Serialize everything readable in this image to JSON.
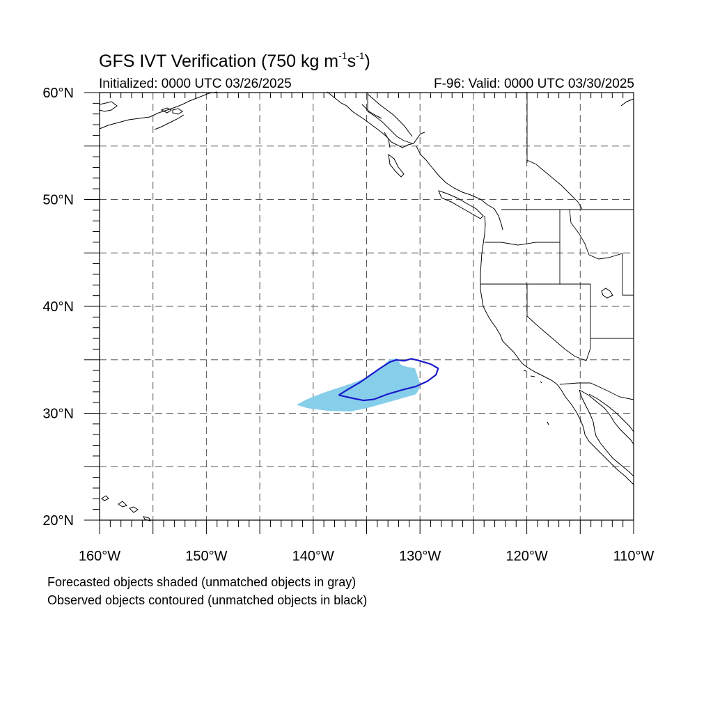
{
  "header": {
    "title_main": "GFS IVT Verification (750 kg m",
    "title_sup1": "-1",
    "title_mid": "s",
    "title_sup2": "-1",
    "title_end": ")",
    "initialized": "Initialized: 0000 UTC 03/26/2025",
    "valid": "F-96: Valid: 0000 UTC 03/30/2025"
  },
  "map": {
    "projection": "cylindrical-equidistant",
    "lon_range": [
      -160,
      -110
    ],
    "lat_range": [
      20,
      60
    ],
    "gridlines": "dashed every 5 degrees",
    "lat_ticks": [
      {
        "value": 20,
        "label": "20°N"
      },
      {
        "value": 30,
        "label": "30°N"
      },
      {
        "value": 40,
        "label": "40°N"
      },
      {
        "value": 50,
        "label": "50°N"
      },
      {
        "value": 60,
        "label": "60°N"
      }
    ],
    "lon_ticks": [
      {
        "value": -160,
        "label": "160°W"
      },
      {
        "value": -150,
        "label": "150°W"
      },
      {
        "value": -140,
        "label": "140°W"
      },
      {
        "value": -130,
        "label": "130°W"
      },
      {
        "value": -120,
        "label": "120°W"
      },
      {
        "value": -110,
        "label": "110°W"
      }
    ],
    "colors": {
      "forecast_fill": "#87ceeb",
      "observed_contour": "#1a1acc",
      "coastline": "#000000",
      "grid": "#555555"
    },
    "forecast_object": {
      "outline": [
        [
          -141.5,
          30.8
        ],
        [
          -140.5,
          31.3
        ],
        [
          -139,
          31.9
        ],
        [
          -137.5,
          32.4
        ],
        [
          -136,
          32.9
        ],
        [
          -134.8,
          33.4
        ],
        [
          -133.5,
          34.4
        ],
        [
          -132.8,
          35.0
        ],
        [
          -132.2,
          35.1
        ],
        [
          -131.8,
          34.5
        ],
        [
          -131.2,
          34.3
        ],
        [
          -130.5,
          34.2
        ],
        [
          -130.1,
          33.0
        ],
        [
          -130.1,
          32.3
        ],
        [
          -130.4,
          31.8
        ],
        [
          -131.8,
          31.4
        ],
        [
          -133.2,
          31.0
        ],
        [
          -135.0,
          30.5
        ],
        [
          -136.5,
          30.2
        ],
        [
          -138.5,
          30.25
        ],
        [
          -140.5,
          30.5
        ]
      ]
    },
    "observed_object": {
      "outline": [
        [
          -137.6,
          31.7
        ],
        [
          -136.8,
          32.2
        ],
        [
          -135.6,
          32.9
        ],
        [
          -134.6,
          33.6
        ],
        [
          -133.6,
          34.3
        ],
        [
          -132.8,
          34.8
        ],
        [
          -132.2,
          35.0
        ],
        [
          -131.5,
          34.9
        ],
        [
          -130.8,
          35.1
        ],
        [
          -130.0,
          34.9
        ],
        [
          -129.0,
          34.6
        ],
        [
          -128.3,
          34.2
        ],
        [
          -128.5,
          33.6
        ],
        [
          -129.3,
          33.0
        ],
        [
          -130.4,
          32.5
        ],
        [
          -131.6,
          32.2
        ],
        [
          -133.0,
          31.8
        ],
        [
          -134.3,
          31.3
        ],
        [
          -135.3,
          31.2
        ],
        [
          -136.3,
          31.4
        ]
      ]
    }
  },
  "footer": {
    "note1": "Forecasted objects shaded (unmatched objects in gray)",
    "note2": "Observed objects contoured (unmatched objects in black)"
  }
}
